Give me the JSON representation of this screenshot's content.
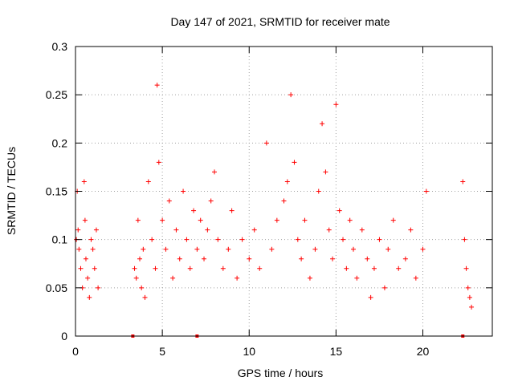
{
  "chart_data": {
    "type": "scatter",
    "title": "Day 147 of 2021, SRMTID for receiver mate",
    "xlabel": "GPS time / hours",
    "ylabel": "SRMTID / TECUs",
    "xlim": [
      0,
      24
    ],
    "ylim": [
      0,
      0.3
    ],
    "grid": true,
    "xticks": [
      0,
      5,
      10,
      15,
      20
    ],
    "xtick_labels": [
      "0",
      "5",
      "10",
      "15",
      "20"
    ],
    "yticks": [
      0,
      0.05,
      0.1,
      0.15,
      0.2,
      0.25,
      0.3
    ],
    "ytick_labels": [
      "0",
      "0.05",
      "0.1",
      "0.15",
      "0.2",
      "0.25",
      "0.3"
    ],
    "marker": "+",
    "series": [
      {
        "name": "SRMTID",
        "color": "#ff0000",
        "x": [
          0.05,
          0.1,
          0.15,
          0.2,
          0.3,
          0.4,
          0.5,
          0.55,
          0.6,
          0.7,
          0.8,
          0.9,
          1.0,
          1.1,
          1.2,
          1.3,
          3.4,
          3.5,
          3.6,
          3.7,
          3.8,
          3.9,
          4.0,
          4.2,
          4.4,
          4.6,
          4.7,
          4.8,
          5.0,
          5.2,
          5.4,
          5.6,
          5.8,
          6.0,
          6.2,
          6.4,
          6.6,
          6.8,
          7.0,
          7.2,
          7.4,
          7.6,
          7.8,
          8.0,
          8.2,
          8.5,
          8.8,
          9.0,
          9.3,
          9.6,
          10.0,
          10.3,
          10.6,
          11.0,
          11.3,
          11.6,
          12.0,
          12.2,
          12.4,
          12.6,
          12.8,
          13.0,
          13.2,
          13.5,
          13.8,
          14.0,
          14.2,
          14.4,
          14.6,
          14.8,
          15.0,
          15.2,
          15.4,
          15.6,
          15.8,
          16.0,
          16.2,
          16.5,
          16.8,
          17.0,
          17.2,
          17.5,
          17.8,
          18.0,
          18.3,
          18.6,
          19.0,
          19.3,
          19.6,
          20.0,
          20.2,
          22.3,
          22.4,
          22.5,
          22.6,
          22.7,
          22.8
        ],
        "y": [
          0.1,
          0.15,
          0.11,
          0.09,
          0.07,
          0.05,
          0.16,
          0.12,
          0.08,
          0.06,
          0.04,
          0.1,
          0.09,
          0.07,
          0.11,
          0.05,
          0.07,
          0.06,
          0.12,
          0.08,
          0.05,
          0.09,
          0.04,
          0.16,
          0.1,
          0.07,
          0.26,
          0.18,
          0.12,
          0.09,
          0.14,
          0.06,
          0.11,
          0.08,
          0.15,
          0.1,
          0.07,
          0.13,
          0.09,
          0.12,
          0.08,
          0.11,
          0.14,
          0.17,
          0.1,
          0.07,
          0.09,
          0.13,
          0.06,
          0.1,
          0.08,
          0.11,
          0.07,
          0.2,
          0.09,
          0.12,
          0.14,
          0.16,
          0.25,
          0.18,
          0.1,
          0.08,
          0.12,
          0.06,
          0.09,
          0.15,
          0.22,
          0.17,
          0.11,
          0.08,
          0.24,
          0.13,
          0.1,
          0.07,
          0.12,
          0.09,
          0.06,
          0.11,
          0.08,
          0.04,
          0.07,
          0.1,
          0.05,
          0.09,
          0.12,
          0.07,
          0.08,
          0.11,
          0.06,
          0.09,
          0.15,
          0.16,
          0.1,
          0.07,
          0.05,
          0.04,
          0.03
        ]
      }
    ],
    "near_zero_markers": [
      3.3,
      7.0,
      22.3
    ]
  }
}
